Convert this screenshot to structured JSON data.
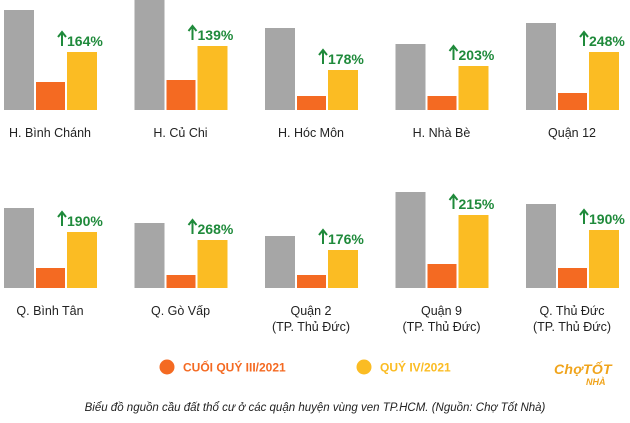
{
  "chart_data": {
    "type": "bar",
    "panels": [
      {
        "label": [
          "H. Bình Chánh"
        ],
        "q3": 28,
        "q4": 58,
        "gray": 100,
        "growth": "164%"
      },
      {
        "label": [
          "H. Củ Chi"
        ],
        "q3": 30,
        "q4": 64,
        "gray": 114,
        "growth": "139%"
      },
      {
        "label": [
          "H. Hóc Môn"
        ],
        "q3": 14,
        "q4": 40,
        "gray": 82,
        "growth": "178%"
      },
      {
        "label": [
          "H. Nhà Bè"
        ],
        "q3": 14,
        "q4": 44,
        "gray": 66,
        "growth": "203%"
      },
      {
        "label": [
          "Quận 12"
        ],
        "q3": 17,
        "q4": 58,
        "gray": 87,
        "growth": "248%"
      },
      {
        "label": [
          "Q. Bình Tân"
        ],
        "q3": 20,
        "q4": 56,
        "gray": 80,
        "growth": "190%"
      },
      {
        "label": [
          "Q. Gò Vấp"
        ],
        "q3": 13,
        "q4": 48,
        "gray": 65,
        "growth": "268%"
      },
      {
        "label": [
          "Quận 2",
          "(TP. Thủ Đức)"
        ],
        "q3": 13,
        "q4": 38,
        "gray": 52,
        "growth": "176%"
      },
      {
        "label": [
          "Quận 9",
          "(TP. Thủ Đức)"
        ],
        "q3": 24,
        "q4": 73,
        "gray": 96,
        "growth": "215%"
      },
      {
        "label": [
          "Q. Thủ Đức",
          "(TP. Thủ Đức)"
        ],
        "q3": 20,
        "q4": 58,
        "gray": 84,
        "growth": "190%"
      }
    ],
    "legend": [
      {
        "name": "CUỐI QUÝ III/2021",
        "color": "#f46a22"
      },
      {
        "name": "QUÝ IV/2021",
        "color": "#fbbc23"
      }
    ],
    "gray_color": "#a6a6a6",
    "growth_color": "#1f8a3b"
  },
  "caption": "Biểu đồ nguồn cầu đất thổ cư ở các quận huyện vùng ven TP.HCM. (Nguồn: Chợ Tốt Nhà)",
  "logo": {
    "top": "ChợTỐT",
    "bottom": "NHÀ"
  }
}
